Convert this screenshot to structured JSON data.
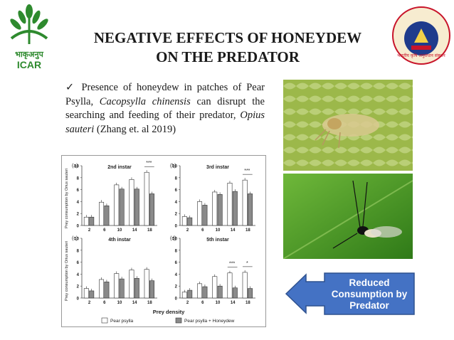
{
  "title": {
    "line1": "NEGATIVE EFFECTS OF HONEYDEW",
    "line2": "ON THE PREDATOR"
  },
  "logo_left": {
    "text_hindi": "भाकृअनुप",
    "text": "ICAR"
  },
  "logo_right": {
    "caption": "भारतीय कृषि अनुसंधान संस्थान"
  },
  "bullet": {
    "check": "✓",
    "part1": "Presence of honeydew in patches of Pear Psylla, ",
    "species1": "Cacopsylla chinensis",
    "part2": " can disrupt the searching and feeding of their predator, ",
    "species2": "Opius sauteri",
    "part3": " (Zhang et. al 2019)"
  },
  "chart_data": {
    "type": "bar",
    "panels": [
      {
        "label": "(a)",
        "title": "2nd instar",
        "categories": [
          "2",
          "6",
          "10",
          "14",
          "18"
        ],
        "series": [
          {
            "name": "Pear psylla",
            "values": [
              1.4,
              3.9,
              6.8,
              7.7,
              8.9
            ]
          },
          {
            "name": "Pear psylla + Honeydew",
            "values": [
              1.4,
              3.3,
              6.1,
              6.1,
              5.3
            ]
          }
        ],
        "ylim": [
          0,
          10
        ],
        "yticks": [
          "0",
          "2",
          "4",
          "6",
          "8",
          "10"
        ],
        "annotations": [
          {
            "category": "18",
            "text": "***"
          }
        ]
      },
      {
        "label": "(b)",
        "title": "3rd instar",
        "categories": [
          "2",
          "6",
          "10",
          "14",
          "18"
        ],
        "series": [
          {
            "name": "Pear psylla",
            "values": [
              1.5,
              4.0,
              5.6,
              7.1,
              7.6
            ]
          },
          {
            "name": "Pear psylla + Honeydew",
            "values": [
              1.3,
              3.4,
              5.2,
              5.7,
              5.3
            ]
          }
        ],
        "ylim": [
          0,
          10
        ],
        "yticks": [
          "0",
          "2",
          "4",
          "6",
          "8",
          "10"
        ],
        "annotations": [
          {
            "category": "18",
            "text": "***"
          }
        ]
      },
      {
        "label": "(c)",
        "title": "4th instar",
        "categories": [
          "2",
          "6",
          "10",
          "14",
          "18"
        ],
        "series": [
          {
            "name": "Pear psylla",
            "values": [
              1.6,
              3.1,
              4.1,
              4.7,
              4.8
            ]
          },
          {
            "name": "Pear psylla + Honeydew",
            "values": [
              1.2,
              2.7,
              3.2,
              3.3,
              2.9
            ]
          }
        ],
        "ylim": [
          0,
          10
        ],
        "yticks": [
          "0",
          "2",
          "4",
          "6",
          "8",
          "10"
        ],
        "annotations": []
      },
      {
        "label": "(d)",
        "title": "5th instar",
        "categories": [
          "2",
          "6",
          "10",
          "14",
          "18"
        ],
        "series": [
          {
            "name": "Pear psylla",
            "values": [
              1.0,
              2.4,
              3.6,
              4.2,
              4.3
            ]
          },
          {
            "name": "Pear psylla + Honeydew",
            "values": [
              1.3,
              1.9,
              2.0,
              1.7,
              1.6
            ]
          }
        ],
        "ylim": [
          0,
          10
        ],
        "yticks": [
          "0",
          "2",
          "4",
          "6",
          "8",
          "10"
        ],
        "annotations": [
          {
            "category": "14",
            "text": "***"
          },
          {
            "category": "18",
            "text": "*"
          }
        ]
      }
    ],
    "ylabel": "Prey consumption by Orius sauteri",
    "xlabel": "Prey density",
    "legend": [
      "Pear psylla",
      "Pear psylla + Honeydew"
    ],
    "legend_position": "bottom"
  },
  "callout": {
    "text": "Reduced Consumption by Predator"
  },
  "colors": {
    "callout_bg": "#4472c4",
    "callout_border": "#2f528f",
    "text": "#1a1a1a",
    "leaf_top": "#8fae3a",
    "leaf_bottom": "#3f8a1e"
  }
}
